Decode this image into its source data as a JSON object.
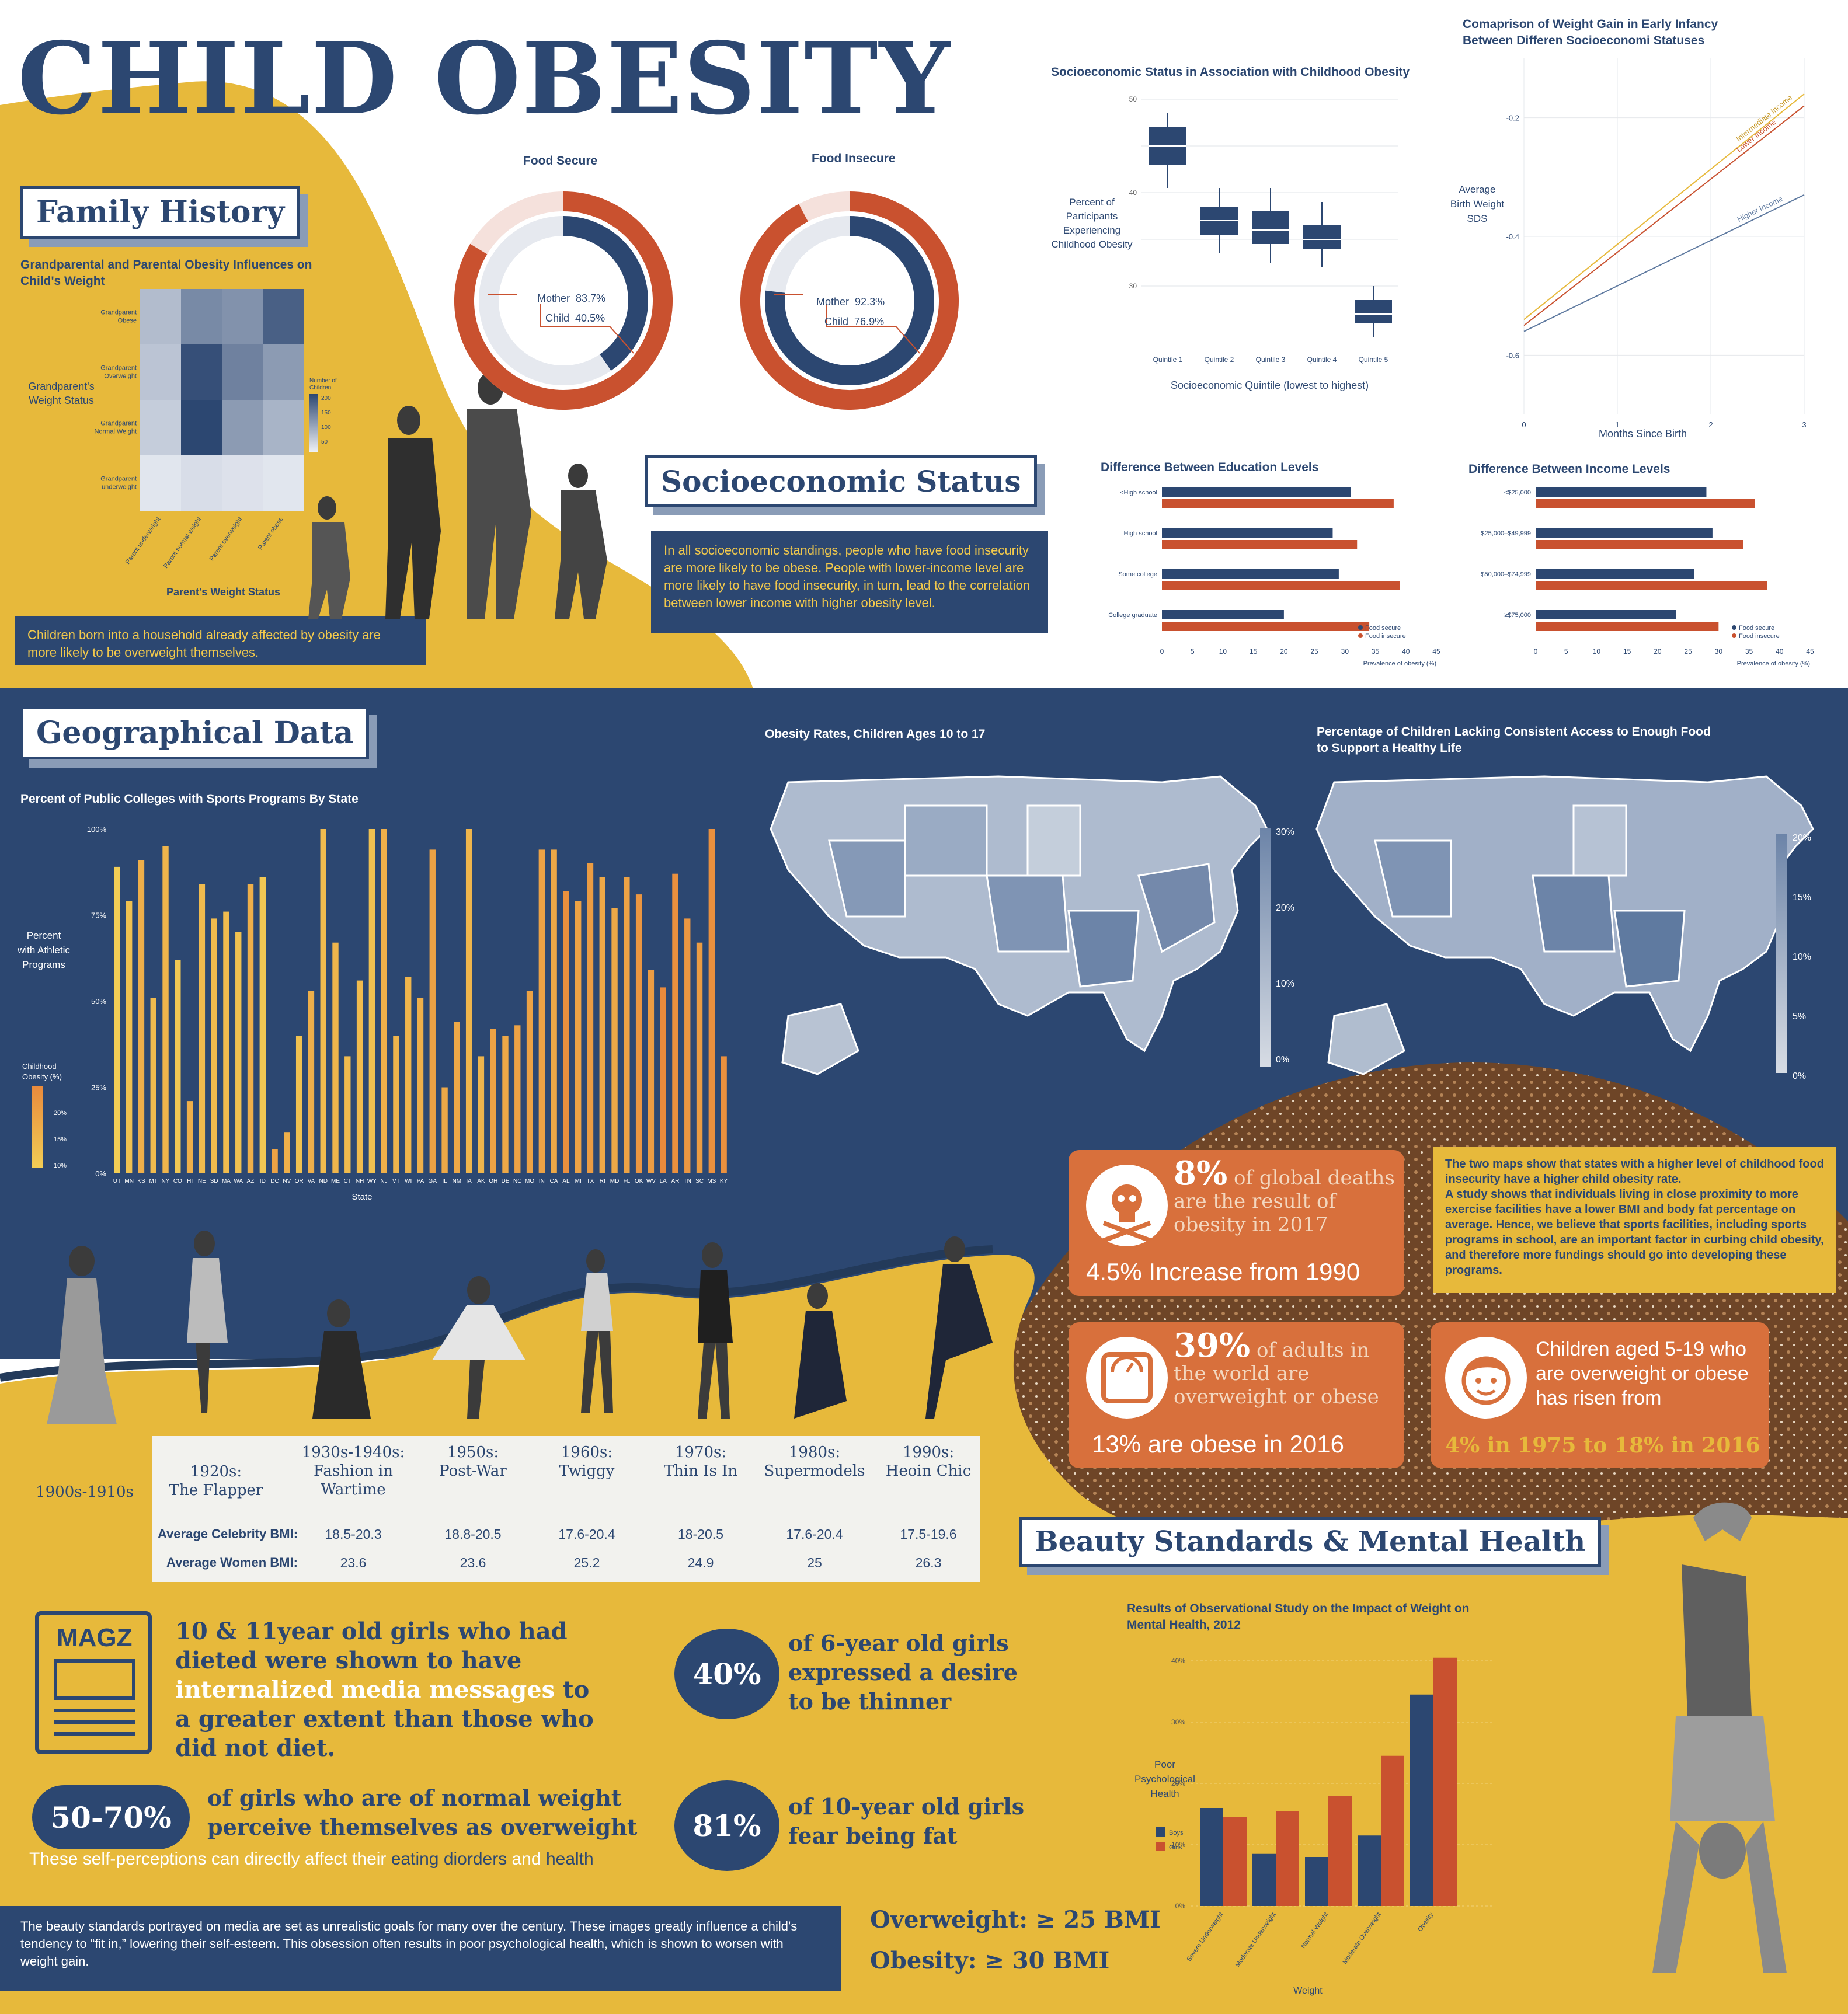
{
  "title": "CHILD OBESITY",
  "sections": {
    "family_history": "Family History",
    "socioeconomic": "Socioeconomic Status",
    "geographical": "Geographical Data",
    "beauty": "Beauty Standards & Mental Health"
  },
  "family": {
    "chart_title": "Grandparental and Parental Obesity Influences on Child's Weight",
    "ylabel": "Grandparent's Weight Status",
    "xlabel": "Parent's Weight Status",
    "rows": [
      "Grandparent Obese",
      "Grandparent Overweight",
      "Grandparent Normal Weight",
      "Grandparent underweight"
    ],
    "cols": [
      "Parent underweight",
      "Parent normal weight",
      "Parent overweight",
      "Parent obese"
    ],
    "legend_title": "Number of Children",
    "legend_ticks": [
      "200",
      "150",
      "100",
      "50"
    ],
    "note": "Children born into a household already affected by obesity are more likely to be overweight themselves."
  },
  "donuts": [
    {
      "title": "Food Secure",
      "mother_label": "Mother",
      "mother": "83.7%",
      "child_label": "Child",
      "child": "40.5%"
    },
    {
      "title": "Food Insecure",
      "mother_label": "Mother",
      "mother": "92.3%",
      "child_label": "Child",
      "child": "76.9%"
    }
  ],
  "socio_text": "In all socioeconomic standings, people who have food insecurity are more likely to be obese. People with lower-income level are more likely to have food insecurity, in turn, lead to the correlation between lower income with higher obesity level.",
  "boxplot": {
    "title": "Socioeconomic Status in Association with Childhood Obesity",
    "ylabel": "Percent of Participants Experiencing Childhood Obesity",
    "xlabel": "Socioeconomic Quintile (lowest to highest)",
    "yticks": [
      "50",
      "40",
      "30"
    ],
    "categories": [
      "Quintile 1",
      "Quintile 2",
      "Quintile 3",
      "Quintile 4",
      "Quintile 5"
    ]
  },
  "linechart": {
    "title": "Comaprison of Weight Gain in Early Infancy Between Differen Socioeconomi Statuses",
    "ylabel": "Average Birth Weight SDS",
    "xlabel": "Months Since Birth",
    "yticks": [
      "-0.2",
      "-0.4",
      "-0.6"
    ],
    "xticks": [
      "0",
      "1",
      "2",
      "3"
    ],
    "labels": [
      "Intermediate Income",
      "Lower Income",
      "Higher Income"
    ]
  },
  "edu": {
    "title": "Difference Between Education Levels",
    "categories": [
      "<High school",
      "High school",
      "Some college",
      "College graduate"
    ],
    "xticks": [
      "0",
      "5",
      "10",
      "15",
      "20",
      "25",
      "30",
      "35",
      "40",
      "45"
    ],
    "xlabel": "Prevalence of obesity (%)",
    "legend": [
      "Food secure",
      "Food insecure"
    ]
  },
  "income": {
    "title": "Difference Between Income Levels",
    "categories": [
      "<$25,000",
      "$25,000–$49,999",
      "$50,000–$74,999",
      "≥$75,000"
    ],
    "xticks": [
      "0",
      "5",
      "10",
      "15",
      "20",
      "25",
      "30",
      "35",
      "40",
      "45"
    ],
    "xlabel": "Prevalence of obesity (%)",
    "legend": [
      "Food secure",
      "Food insecure"
    ]
  },
  "sports": {
    "title": "Percent of Public Colleges with Sports Programs By State",
    "ylabel": "Percent with Athletic Programs",
    "yticks": [
      "100%",
      "75%",
      "50%",
      "25%",
      "0%"
    ],
    "xlabel": "State",
    "legend_title": "Childhood Obesity (%)",
    "legend_ticks": [
      "20%",
      "15%",
      "10%"
    ],
    "states": [
      "UT",
      "MN",
      "KS",
      "MT",
      "NY",
      "CO",
      "HI",
      "NE",
      "SD",
      "MA",
      "WA",
      "AZ",
      "ID",
      "DC",
      "NV",
      "OR",
      "VA",
      "ND",
      "ME",
      "CT",
      "NH",
      "WY",
      "NJ",
      "VT",
      "WI",
      "PA",
      "GA",
      "IL",
      "NM",
      "IA",
      "AK",
      "OH",
      "DE",
      "NC",
      "MO",
      "IN",
      "CA",
      "AL",
      "MI",
      "TX",
      "RI",
      "MD",
      "FL",
      "OK",
      "WV",
      "LA",
      "AR",
      "TN",
      "SC",
      "MS",
      "KY"
    ]
  },
  "maps": [
    {
      "title": "Obesity Rates, Children Ages 10 to 17",
      "ticks": [
        "30%",
        "20%",
        "10%",
        "0%"
      ]
    },
    {
      "title": "Percentage of Children Lacking Consistent Access to Enough Food to Support a Healthy Life",
      "ticks": [
        "20%",
        "15%",
        "10%",
        "5%",
        "0%"
      ]
    }
  ],
  "cards": {
    "c1": {
      "big": "8%",
      "text": " of global deaths are the result of obesity in 2017",
      "sub": "4.5% Increase from 1990"
    },
    "c2": {
      "big": "39%",
      "text": " of adults in the world are overweight or obese",
      "sub": "13% are obese in 2016"
    },
    "c3": {
      "text": "Children aged 5-19 who are overweight or obese has risen from",
      "sub": "4% in 1975 to 18% in 2016"
    }
  },
  "map_note": "The two maps show that states with a higher level of childhood food insecurity have a higher child obesity rate.\nA study shows that individuals living in close proximity to more exercise facilities have a lower BMI and body fat percentage on average. Hence, we believe that sports facilities, including sports programs in school, are an important factor in curbing child obesity, and therefore more fundings should go into developing these programs.",
  "eras": [
    {
      "label": "1900s-1910s"
    },
    {
      "label": "1920s:\nThe Flapper"
    },
    {
      "label": "1930s-1940s:\nFashion in Wartime",
      "celeb": "18.5-20.3",
      "women": "23.6"
    },
    {
      "label": "1950s:\nPost-War",
      "celeb": "18.8-20.5",
      "women": "23.6"
    },
    {
      "label": "1960s:\nTwiggy",
      "celeb": "17.6-20.4",
      "women": "25.2"
    },
    {
      "label": "1970s:\nThin Is In",
      "celeb": "18-20.5",
      "women": "24.9"
    },
    {
      "label": "1980s:\nSupermodels",
      "celeb": "17.6-20.4",
      "women": "25"
    },
    {
      "label": "1990s:\nHeoin Chic",
      "celeb": "17.5-19.6",
      "women": "26.3"
    }
  ],
  "bmi_labels": {
    "celeb": "Average Celebrity BMI:",
    "women": "Average Women BMI:"
  },
  "stats": {
    "magz": "MAGZ",
    "diet_a": "10 & 11year old girls who had dieted were shown to have ",
    "diet_b": "internalized media messages",
    "diet_c": " to a greater extent than those who did not diet.",
    "p40": "40%",
    "p40_text": "of 6-year old girls expressed a desire to be thinner",
    "p5070": "50-70%",
    "p5070_text": "of girls who are of normal weight perceive themselves as overweight",
    "self_a": "These self-perceptions can directly affect their ",
    "self_b": "eating diorders",
    "self_c": " and ",
    "self_d": "health",
    "p81": "81%",
    "p81_text": "of 10-year old girls fear being fat"
  },
  "bottom_note": "The beauty standards portrayed on media are set as unrealistic goals for many over the century. These images greatly influence a child's tendency to “fit in,” lowering their self-esteem. This obsession often results in poor psychological health, which is shown to worsen with weight gain.",
  "bmi_def": {
    "overweight": "Overweight: ≥ 25 BMI",
    "obesity": "Obesity: ≥ 30 BMI"
  },
  "mental": {
    "title": "Results of Observational Study on the Impact of Weight on Mental Health, 2012",
    "ylabel": "Poor Psychological Health",
    "xlabel": "Weight",
    "yticks": [
      "40%",
      "30%",
      "20%",
      "10%",
      "0%"
    ],
    "legend": [
      "Boys",
      "Girls"
    ]
  },
  "colors": {
    "navy": "#2c4771",
    "yellow": "#e7b93b",
    "orange": "#c9512f",
    "card": "#d8703c"
  },
  "chart_data": [
    {
      "type": "bar",
      "title": "Difference Between Education Levels",
      "categories": [
        "<High school",
        "High school",
        "Some college",
        "College graduate"
      ],
      "series": [
        {
          "name": "Food secure",
          "values": [
            31,
            28,
            29,
            20
          ]
        },
        {
          "name": "Food insecure",
          "values": [
            38,
            32,
            39,
            34
          ]
        }
      ],
      "xlabel": "Prevalence of obesity (%)",
      "xlim": [
        0,
        45
      ]
    },
    {
      "type": "bar",
      "title": "Difference Between Income Levels",
      "categories": [
        "<$25,000",
        "$25,000–$49,999",
        "$50,000–$74,999",
        "≥$75,000"
      ],
      "series": [
        {
          "name": "Food secure",
          "values": [
            28,
            29,
            26,
            23
          ]
        },
        {
          "name": "Food insecure",
          "values": [
            36,
            34,
            38,
            30
          ]
        }
      ],
      "xlabel": "Prevalence of obesity (%)",
      "xlim": [
        0,
        45
      ]
    },
    {
      "type": "bar",
      "title": "Results of Observational Study on the Impact of Weight on Mental Health, 2012",
      "categories": [
        "Severe Underweight",
        "Moderate Underweight",
        "Normal Weight",
        "Moderate Overweight",
        "Obesity"
      ],
      "series": [
        {
          "name": "Boys",
          "values": [
            16,
            8.5,
            8,
            11.5,
            34.5
          ]
        },
        {
          "name": "Girls",
          "values": [
            14.5,
            15.5,
            18,
            24.5,
            40.5
          ]
        }
      ],
      "ylim": [
        0,
        40
      ]
    },
    {
      "type": "box",
      "title": "Socioeconomic Status in Association with Childhood Obesity",
      "categories": [
        "Quintile 1",
        "Quintile 2",
        "Quintile 3",
        "Quintile 4",
        "Quintile 5"
      ],
      "box": [
        {
          "min": 40.5,
          "q1": 43,
          "median": 45,
          "q3": 47,
          "max": 48.5
        },
        {
          "min": 33.5,
          "q1": 35.5,
          "median": 37,
          "q3": 38.5,
          "max": 40.5
        },
        {
          "min": 32.5,
          "q1": 34.5,
          "median": 36,
          "q3": 38,
          "max": 40.5
        },
        {
          "min": 32,
          "q1": 34,
          "median": 35,
          "q3": 36.5,
          "max": 39
        },
        {
          "min": 24.5,
          "q1": 26,
          "median": 27,
          "q3": 28.5,
          "max": 30
        }
      ],
      "ylim": [
        25,
        50
      ]
    },
    {
      "type": "line",
      "title": "Comaprison of Weight Gain in Early Infancy Between Differen Socioeconomi Statuses",
      "x": [
        0,
        3
      ],
      "series": [
        {
          "name": "Intermediate Income",
          "values": [
            -0.54,
            -0.16
          ]
        },
        {
          "name": "Lower Income",
          "values": [
            -0.55,
            -0.18
          ]
        },
        {
          "name": "Higher Income",
          "values": [
            -0.56,
            -0.33
          ]
        }
      ],
      "ylim": [
        -0.7,
        -0.1
      ]
    },
    {
      "type": "heatmap",
      "title": "Grandparental and Parental Obesity Influences on Child's Weight",
      "rows": [
        "Grandparent Obese",
        "Grandparent Overweight",
        "Grandparent Normal Weight",
        "Grandparent underweight"
      ],
      "cols": [
        "Parent underweight",
        "Parent normal weight",
        "Parent overweight",
        "Parent obese"
      ],
      "values": [
        [
          60,
          120,
          110,
          170
        ],
        [
          50,
          190,
          130,
          100
        ],
        [
          40,
          200,
          100,
          70
        ],
        [
          10,
          20,
          15,
          10
        ]
      ]
    },
    {
      "type": "bar",
      "title": "Percent of Public Colleges with Sports Programs By State",
      "categories": [
        "UT",
        "MN",
        "KS",
        "MT",
        "NY",
        "CO",
        "HI",
        "NE",
        "SD",
        "MA",
        "WA",
        "AZ",
        "ID",
        "DC",
        "NV",
        "OR",
        "VA",
        "ND",
        "ME",
        "CT",
        "NH",
        "WY",
        "NJ",
        "VT",
        "WI",
        "PA",
        "GA",
        "IL",
        "NM",
        "IA",
        "AK",
        "OH",
        "DE",
        "NC",
        "MO",
        "IN",
        "CA",
        "AL",
        "MI",
        "TX",
        "RI",
        "MD",
        "FL",
        "OK",
        "WV",
        "LA",
        "AR",
        "TN",
        "SC",
        "MS",
        "KY"
      ],
      "values": [
        89,
        79,
        91,
        51,
        95,
        62,
        21,
        84,
        74,
        76,
        70,
        84,
        86,
        7,
        12,
        40,
        53,
        100,
        67,
        34,
        56,
        100,
        100,
        40,
        57,
        51,
        94,
        25,
        44,
        100,
        34,
        42,
        40,
        43,
        53,
        94,
        94,
        82,
        79,
        90,
        86,
        77,
        86,
        81,
        59,
        54,
        87,
        74,
        67,
        100,
        34
      ],
      "obesity": [
        9,
        11,
        14,
        12,
        13,
        10,
        14,
        12,
        12,
        12,
        11,
        14,
        10,
        16,
        14,
        11,
        14,
        12,
        13,
        12,
        12,
        11,
        14,
        13,
        13,
        14,
        16,
        15,
        15,
        13,
        13,
        16,
        15,
        16,
        16,
        16,
        15,
        19,
        16,
        17,
        15,
        15,
        16,
        18,
        17,
        20,
        19,
        18,
        17,
        19,
        19
      ],
      "ylim": [
        0,
        100
      ]
    },
    {
      "type": "pie",
      "title": "Food Secure",
      "series": [
        {
          "name": "Mother",
          "values": [
            83.7
          ]
        },
        {
          "name": "Child",
          "values": [
            40.5
          ]
        }
      ]
    },
    {
      "type": "pie",
      "title": "Food Insecure",
      "series": [
        {
          "name": "Mother",
          "values": [
            92.3
          ]
        },
        {
          "name": "Child",
          "values": [
            76.9
          ]
        }
      ]
    }
  ]
}
